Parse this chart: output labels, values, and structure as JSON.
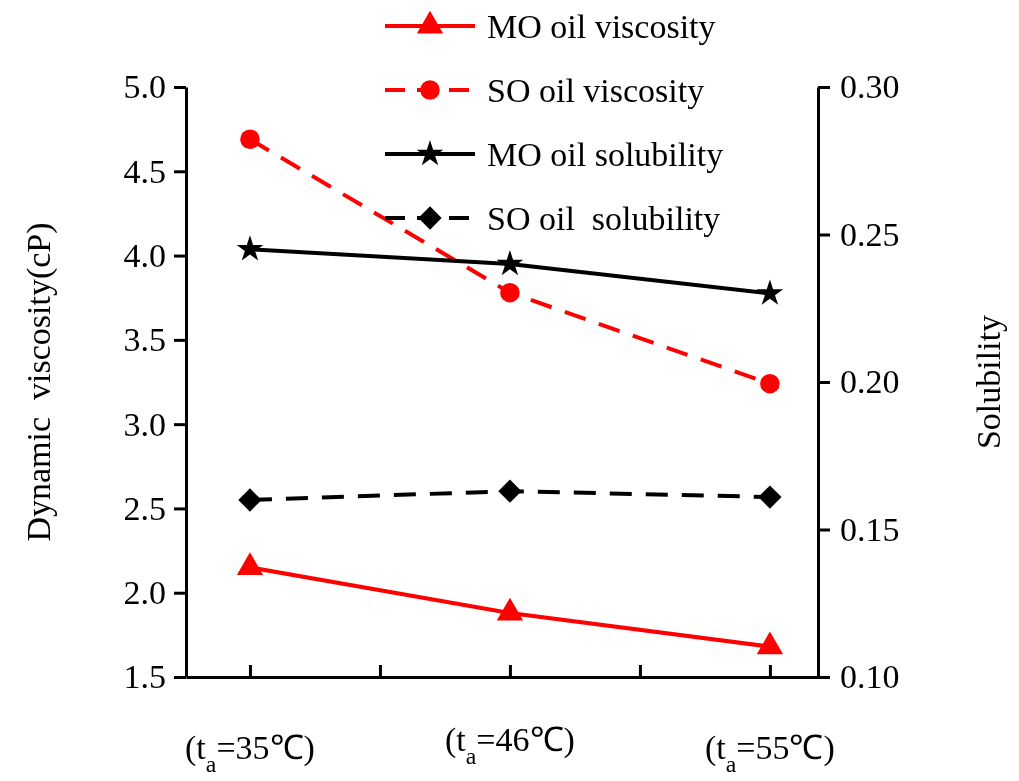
{
  "chart_data": {
    "type": "line",
    "ylabel": "Dynamic  viscosity(cP)",
    "y2label": "Solubility",
    "categories": [
      "(t$_{a}$=35℃)",
      "(t$_{a}$=46℃)",
      "(t$_{a}$=55℃)"
    ],
    "ylim": [
      1.5,
      5.0
    ],
    "yticks": [
      {
        "value": 1.5,
        "label": "1.5"
      },
      {
        "value": 2.0,
        "label": "2.0"
      },
      {
        "value": 2.5,
        "label": "2.5"
      },
      {
        "value": 3.0,
        "label": "3.0"
      },
      {
        "value": 3.5,
        "label": "3.5"
      },
      {
        "value": 4.0,
        "label": "4.0"
      },
      {
        "value": 4.5,
        "label": "4.5"
      },
      {
        "value": 5.0,
        "label": "5.0"
      }
    ],
    "y2lim": [
      0.1,
      0.3
    ],
    "y2ticks": [
      {
        "value": 0.1,
        "label": "0.10"
      },
      {
        "value": 0.15,
        "label": "0.15"
      },
      {
        "value": 0.2,
        "label": "0.20"
      },
      {
        "value": 0.25,
        "label": "0.25"
      },
      {
        "value": 0.3,
        "label": "0.30"
      }
    ],
    "legend": "top right",
    "grid": false,
    "series": [
      {
        "name": "MO oil viscosity",
        "color": "#ff0000",
        "values": [
          2.15,
          1.88,
          1.68
        ],
        "marker": "triangle",
        "line_style": "solid"
      },
      {
        "name": "SO oil viscosity",
        "color": "#ff0000",
        "values": [
          4.69,
          3.78,
          3.24
        ],
        "marker": "circle",
        "line_style": "dashed"
      },
      {
        "name": "MO oil solubility",
        "color": "#000000",
        "values": [
          0.245,
          0.24,
          0.23
        ],
        "marker": "star",
        "line_style": "solid",
        "axis": "y2"
      },
      {
        "name": "SO oil  solubility",
        "color": "#000000",
        "values": [
          0.16,
          0.163,
          0.161
        ],
        "marker": "diamond",
        "line_style": "dashed",
        "axis": "y2"
      }
    ]
  }
}
